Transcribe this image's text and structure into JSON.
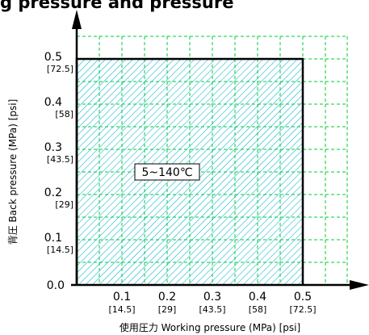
{
  "title_fragment": "g pressure and pressure",
  "chart_data": {
    "type": "area",
    "xlabel": "使用圧力 Working pressure (MPa) [psi]",
    "ylabel": "背圧 Back pressure (MPa) [psi]",
    "xlim": [
      0,
      0.5
    ],
    "ylim": [
      0,
      0.5
    ],
    "grid": true,
    "x_ticks": [
      {
        "value": 0.1,
        "label": "0.1",
        "psi": "[14.5]"
      },
      {
        "value": 0.2,
        "label": "0.2",
        "psi": "[29]"
      },
      {
        "value": 0.3,
        "label": "0.3",
        "psi": "[43.5]"
      },
      {
        "value": 0.4,
        "label": "0.4",
        "psi": "[58]"
      },
      {
        "value": 0.5,
        "label": "0.5",
        "psi": "[72.5]"
      }
    ],
    "y_ticks": [
      {
        "value": 0.0,
        "label": "0.0",
        "psi": ""
      },
      {
        "value": 0.1,
        "label": "0.1",
        "psi": "[14.5]"
      },
      {
        "value": 0.2,
        "label": "0.2",
        "psi": "[29]"
      },
      {
        "value": 0.3,
        "label": "0.3",
        "psi": "[43.5]"
      },
      {
        "value": 0.4,
        "label": "0.4",
        "psi": "[58]"
      },
      {
        "value": 0.5,
        "label": "0.5",
        "psi": "[72.5]"
      }
    ],
    "region": {
      "x": [
        0,
        0.5
      ],
      "y": [
        0,
        0.5
      ],
      "label": "5~140℃"
    },
    "colors": {
      "grid": "#00cc33",
      "hatch": "#00b4c8",
      "border": "#000000"
    }
  }
}
